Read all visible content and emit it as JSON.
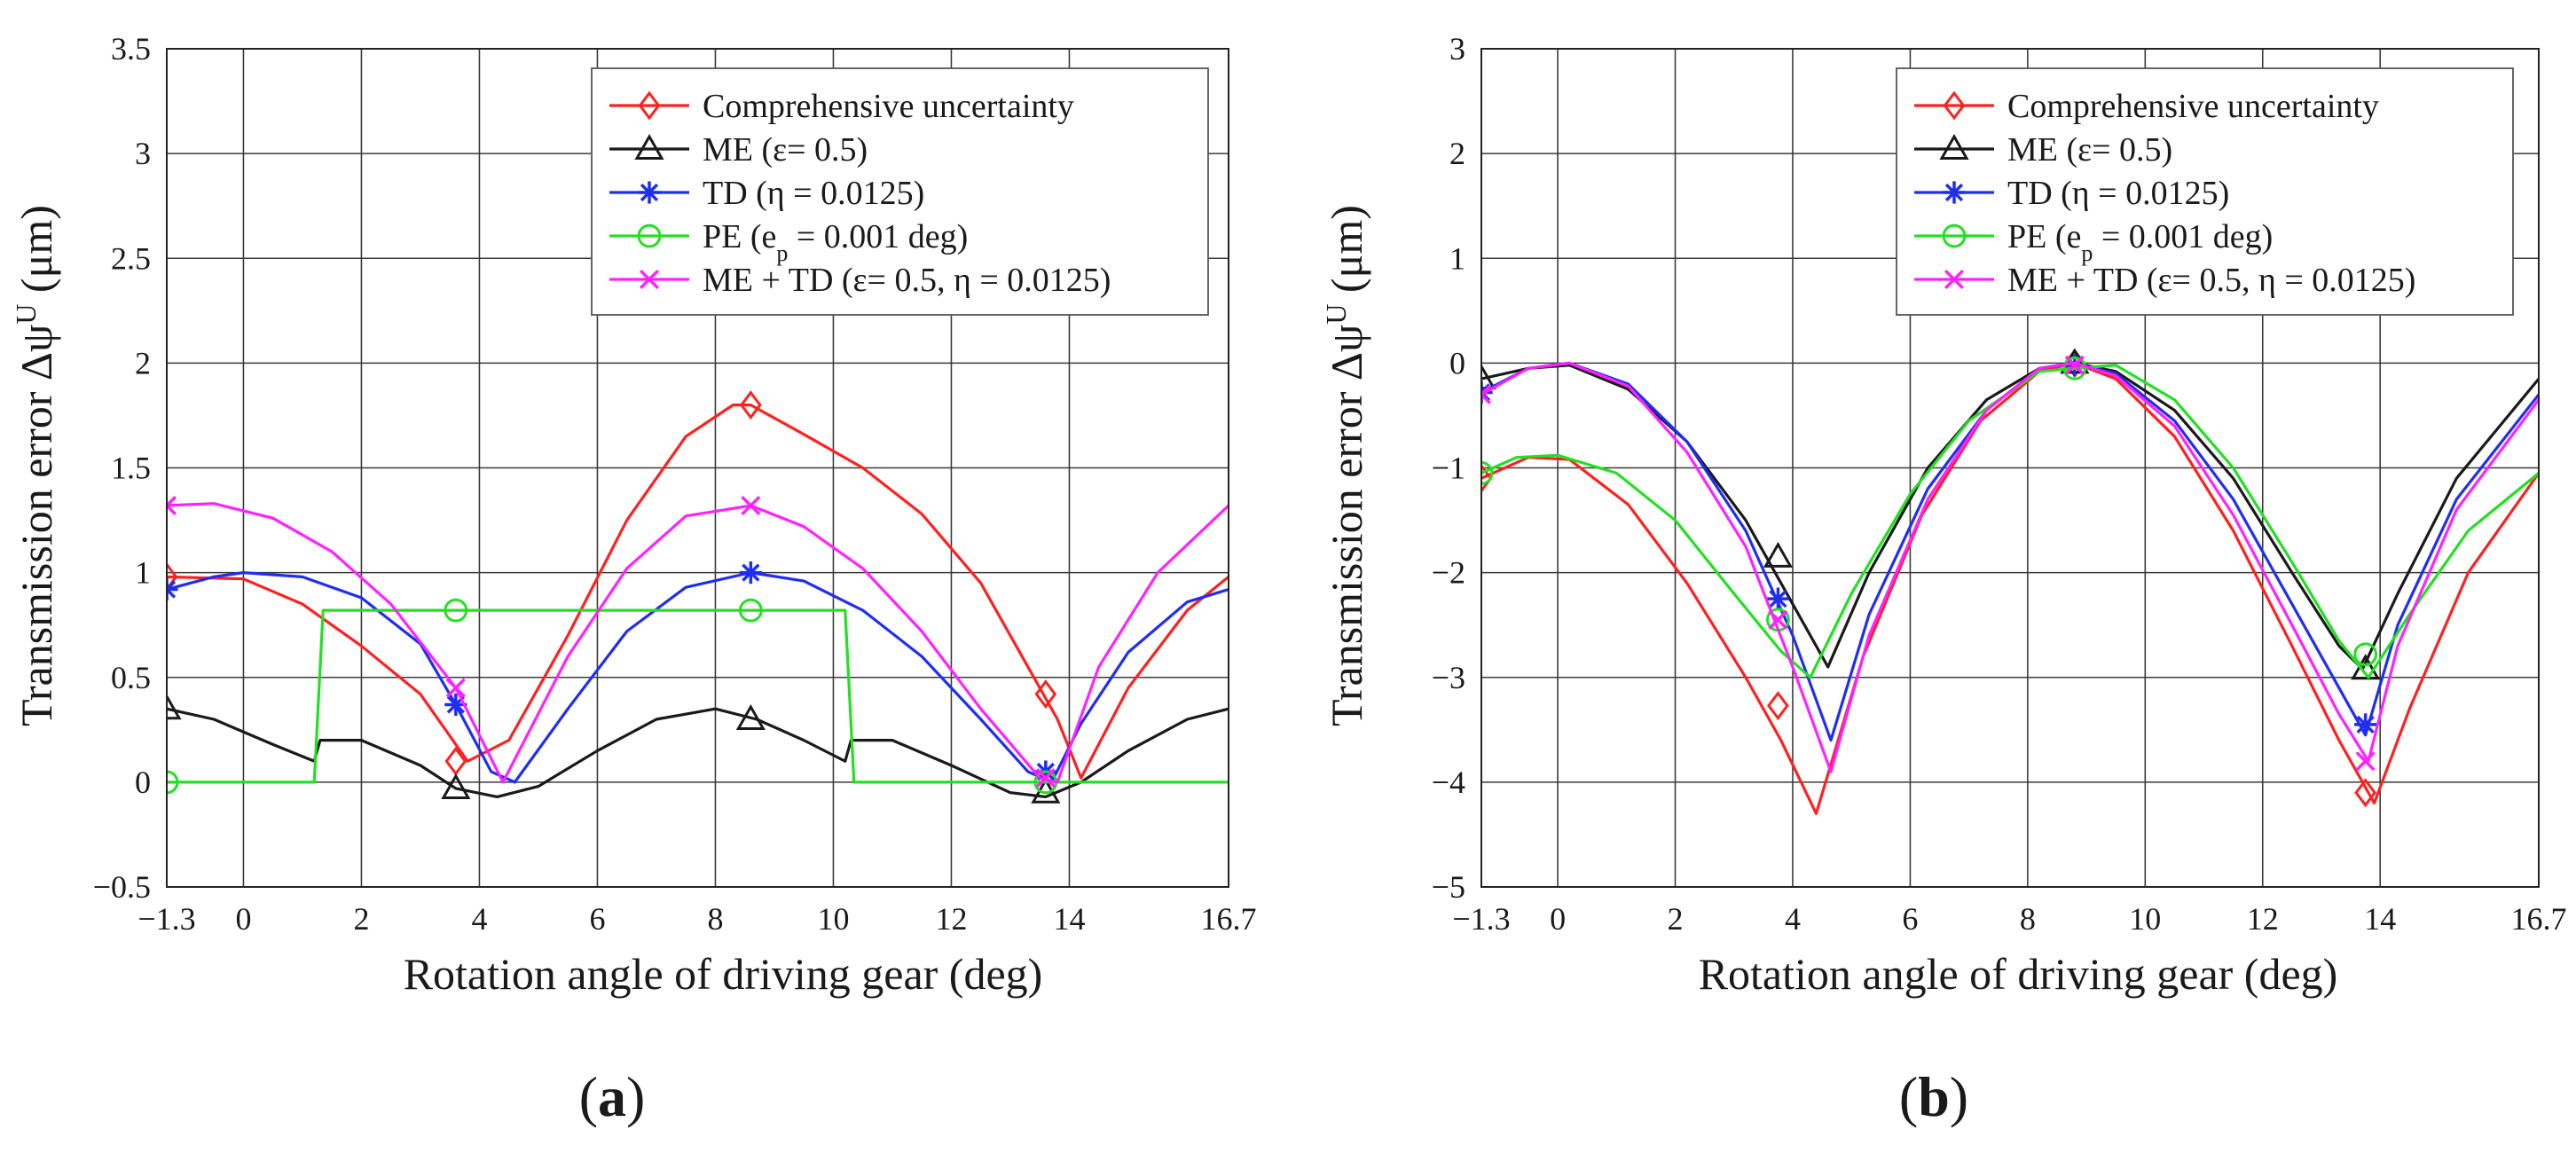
{
  "figure": {
    "panel_labels": [
      {
        "open": "(",
        "letter": "a",
        "close": ")"
      },
      {
        "open": "(",
        "letter": "b",
        "close": ")"
      }
    ]
  },
  "legend": {
    "items": [
      {
        "label": "Comprehensive uncertainty",
        "color": "#ff2020",
        "marker": "diamond"
      },
      {
        "label": "ME (ε= 0.5)",
        "color": "#1a1a1a",
        "marker": "triangle"
      },
      {
        "label": "TD (η = 0.0125)",
        "color": "#1f2ef0",
        "marker": "asterisk"
      },
      {
        "label_main": "PE (e",
        "label_sub": "p",
        "label_tail": " = 0.001 deg)",
        "color": "#22e022",
        "marker": "circle"
      },
      {
        "label": "ME + TD (ε= 0.5, η = 0.0125)",
        "color": "#ff22ff",
        "marker": "cross"
      }
    ]
  },
  "chart_data": [
    {
      "type": "line",
      "panel": "a",
      "title": "",
      "xlabel": "Rotation angle of driving gear (deg)",
      "ylabel_main": "Transmission error Δψ",
      "ylabel_sup": "U",
      "ylabel_unit": " (μm)",
      "xlim": [
        -1.3,
        16.7
      ],
      "ylim": [
        -0.5,
        3.5
      ],
      "xticks": [
        -1.3,
        0,
        2,
        4,
        6,
        8,
        10,
        12,
        14,
        16.7
      ],
      "xtick_labels": [
        "−1.3",
        "0",
        "2",
        "4",
        "6",
        "8",
        "10",
        "12",
        "14",
        "16.7"
      ],
      "yticks": [
        -0.5,
        0,
        0.5,
        1,
        1.5,
        2,
        2.5,
        3,
        3.5
      ],
      "ytick_labels": [
        "−0.5",
        "0",
        "0.5",
        "1",
        "1.5",
        "2",
        "2.5",
        "3",
        "3.5"
      ],
      "grid": true,
      "legend_position": "top-right",
      "series": [
        {
          "name": "Comprehensive uncertainty",
          "color": "#ff2020",
          "marker": "diamond",
          "x": [
            -1.3,
            0,
            1,
            2,
            3,
            3.8,
            4.5,
            5.5,
            6.5,
            7.5,
            8.3,
            8.6,
            9.5,
            10.5,
            11.5,
            12.5,
            13.3,
            13.8,
            14.2,
            15,
            16,
            16.7
          ],
          "y": [
            0.98,
            0.97,
            0.85,
            0.65,
            0.42,
            0.1,
            0.2,
            0.7,
            1.25,
            1.65,
            1.8,
            1.8,
            1.66,
            1.5,
            1.28,
            0.95,
            0.55,
            0.3,
            0.02,
            0.45,
            0.82,
            0.98
          ],
          "markers_x": [
            -1.3,
            3.6,
            8.6,
            13.6
          ],
          "markers_y": [
            0.98,
            0.1,
            1.8,
            0.42
          ]
        },
        {
          "name": "ME (ε= 0.5)",
          "color": "#1a1a1a",
          "marker": "triangle",
          "x": [
            -1.3,
            -0.5,
            0.5,
            1.2,
            1.3,
            2,
            3,
            3.6,
            4.3,
            5,
            6,
            7,
            8,
            8.7,
            9.5,
            10.2,
            10.3,
            11,
            12,
            13,
            13.6,
            14.2,
            15,
            16,
            16.7
          ],
          "y": [
            0.35,
            0.3,
            0.18,
            0.1,
            0.2,
            0.2,
            0.08,
            -0.03,
            -0.07,
            -0.02,
            0.15,
            0.3,
            0.35,
            0.3,
            0.2,
            0.1,
            0.2,
            0.2,
            0.08,
            -0.05,
            -0.07,
            0.0,
            0.15,
            0.3,
            0.35
          ],
          "markers_x": [
            -1.3,
            3.6,
            8.6,
            13.6
          ],
          "markers_y": [
            0.35,
            -0.03,
            0.3,
            -0.05
          ]
        },
        {
          "name": "TD (η = 0.0125)",
          "color": "#1f2ef0",
          "marker": "asterisk",
          "x": [
            -1.3,
            -0.5,
            0,
            1,
            2,
            3,
            3.6,
            4.2,
            4.6,
            5.5,
            6.5,
            7.5,
            8.6,
            9.5,
            10.5,
            11.5,
            12.5,
            13.3,
            13.7,
            14.2,
            15,
            16,
            16.7
          ],
          "y": [
            0.92,
            0.98,
            1.0,
            0.98,
            0.88,
            0.66,
            0.37,
            0.05,
            0.0,
            0.35,
            0.72,
            0.93,
            1.0,
            0.96,
            0.82,
            0.6,
            0.3,
            0.05,
            0.0,
            0.28,
            0.62,
            0.86,
            0.92
          ],
          "markers_x": [
            -1.3,
            3.6,
            8.6,
            13.6
          ],
          "markers_y": [
            0.92,
            0.37,
            1.0,
            0.05
          ]
        },
        {
          "name": "PE (ep = 0.001 deg)",
          "color": "#22e022",
          "marker": "circle",
          "x": [
            -1.3,
            1.2,
            1.35,
            10.2,
            10.35,
            16.7
          ],
          "y": [
            0,
            0,
            0.82,
            0.82,
            0,
            0
          ],
          "markers_x": [
            -1.3,
            3.6,
            8.6,
            13.6
          ],
          "markers_y": [
            0,
            0.82,
            0.82,
            0
          ]
        },
        {
          "name": "ME + TD (ε= 0.5, η = 0.0125)",
          "color": "#ff22ff",
          "marker": "cross",
          "x": [
            -1.3,
            -0.5,
            0.5,
            1.5,
            2.5,
            3.6,
            4.4,
            5.5,
            6.5,
            7.5,
            8.6,
            9.5,
            10.5,
            11.5,
            12.5,
            13.5,
            13.8,
            14.5,
            15.5,
            16.7
          ],
          "y": [
            1.32,
            1.33,
            1.26,
            1.1,
            0.85,
            0.45,
            0.0,
            0.6,
            1.02,
            1.27,
            1.32,
            1.22,
            1.02,
            0.72,
            0.35,
            0.02,
            0.0,
            0.55,
            1.0,
            1.32
          ],
          "markers_x": [
            -1.3,
            3.6,
            8.6,
            13.6
          ],
          "markers_y": [
            1.32,
            0.45,
            1.32,
            0.02
          ]
        }
      ]
    },
    {
      "type": "line",
      "panel": "b",
      "title": "",
      "xlabel": "Rotation angle of driving gear (deg)",
      "ylabel_main": "Transmission error Δψ",
      "ylabel_sup": "U",
      "ylabel_unit": " (μm)",
      "xlim": [
        -1.3,
        16.7
      ],
      "ylim": [
        -5,
        3
      ],
      "xticks": [
        -1.3,
        0,
        2,
        4,
        6,
        8,
        10,
        12,
        14,
        16.7
      ],
      "xtick_labels": [
        "−1.3",
        "0",
        "2",
        "4",
        "6",
        "8",
        "10",
        "12",
        "14",
        "16.7"
      ],
      "yticks": [
        -5,
        -4,
        -3,
        -2,
        -1,
        0,
        1,
        2,
        3
      ],
      "ytick_labels": [
        "−5",
        "−4",
        "−3",
        "−2",
        "−1",
        "0",
        "1",
        "2",
        "3"
      ],
      "grid": true,
      "legend_position": "top-right",
      "series": [
        {
          "name": "Comprehensive uncertainty",
          "color": "#ff2020",
          "marker": "diamond",
          "x": [
            -1.3,
            -0.5,
            0.2,
            1.2,
            2.2,
            3.2,
            3.8,
            4.4,
            5.2,
            6.2,
            7.2,
            8.2,
            8.8,
            9.5,
            10.5,
            11.5,
            12.5,
            13.3,
            13.9,
            14.5,
            15.5,
            16.7
          ],
          "y": [
            -1.1,
            -0.9,
            -0.92,
            -1.35,
            -2.1,
            -3.0,
            -3.6,
            -4.3,
            -2.8,
            -1.45,
            -0.55,
            -0.08,
            0.0,
            -0.15,
            -0.7,
            -1.6,
            -2.7,
            -3.6,
            -4.2,
            -3.3,
            -2.0,
            -1.05
          ],
          "markers_x": [
            -1.3,
            3.75,
            8.8,
            13.75
          ],
          "markers_y": [
            -1.1,
            -3.27,
            0.0,
            -4.1
          ]
        },
        {
          "name": "ME (ε= 0.5)",
          "color": "#1a1a1a",
          "marker": "triangle",
          "x": [
            -1.3,
            -0.5,
            0.2,
            1.2,
            2.2,
            3.2,
            4.0,
            4.6,
            5.3,
            6.3,
            7.3,
            8.2,
            8.8,
            9.5,
            10.5,
            11.5,
            12.5,
            13.3,
            13.7,
            14.3,
            15.3,
            16.7
          ],
          "y": [
            -0.15,
            -0.05,
            -0.02,
            -0.25,
            -0.75,
            -1.5,
            -2.3,
            -2.9,
            -2.0,
            -1.0,
            -0.35,
            -0.05,
            0.0,
            -0.08,
            -0.45,
            -1.1,
            -2.0,
            -2.7,
            -2.92,
            -2.2,
            -1.1,
            -0.15
          ],
          "markers_x": [
            -1.3,
            3.75,
            8.8,
            13.75
          ],
          "markers_y": [
            -0.15,
            -1.85,
            0.0,
            -2.92
          ]
        },
        {
          "name": "TD (η = 0.0125)",
          "color": "#1f2ef0",
          "marker": "asterisk",
          "x": [
            -1.3,
            -0.5,
            0.2,
            1.2,
            2.2,
            3.2,
            4.0,
            4.65,
            5.3,
            6.3,
            7.3,
            8.2,
            8.8,
            9.5,
            10.5,
            11.5,
            12.5,
            13.3,
            13.75,
            14.3,
            15.3,
            16.7
          ],
          "y": [
            -0.28,
            -0.05,
            0.0,
            -0.2,
            -0.75,
            -1.6,
            -2.6,
            -3.6,
            -2.4,
            -1.2,
            -0.45,
            -0.05,
            0.0,
            -0.1,
            -0.55,
            -1.3,
            -2.3,
            -3.1,
            -3.55,
            -2.5,
            -1.3,
            -0.3
          ],
          "markers_x": [
            -1.3,
            3.75,
            8.8,
            13.75
          ],
          "markers_y": [
            -0.28,
            -2.25,
            -0.02,
            -3.45
          ]
        },
        {
          "name": "PE (ep = 0.001 deg)",
          "color": "#22e022",
          "marker": "circle",
          "x": [
            -1.3,
            -0.7,
            0.0,
            1.0,
            2.0,
            3.0,
            3.8,
            4.3,
            5.0,
            6.0,
            7.0,
            8.2,
            8.8,
            9.5,
            10.5,
            11.5,
            12.5,
            13.3,
            13.8,
            14.5,
            15.5,
            16.7
          ],
          "y": [
            -1.05,
            -0.9,
            -0.88,
            -1.05,
            -1.5,
            -2.2,
            -2.75,
            -3.0,
            -2.2,
            -1.25,
            -0.55,
            -0.08,
            -0.05,
            -0.02,
            -0.35,
            -1.0,
            -1.9,
            -2.65,
            -3.0,
            -2.4,
            -1.6,
            -1.05
          ],
          "markers_x": [
            -1.3,
            3.75,
            8.8,
            13.75
          ],
          "markers_y": [
            -1.05,
            -2.45,
            -0.05,
            -2.78
          ]
        },
        {
          "name": "ME + TD (ε= 0.5, η = 0.0125)",
          "color": "#ff22ff",
          "marker": "cross",
          "x": [
            -1.3,
            -0.5,
            0.2,
            1.2,
            2.2,
            3.2,
            4.0,
            4.65,
            5.3,
            6.3,
            7.3,
            8.2,
            8.8,
            9.5,
            10.5,
            11.5,
            12.5,
            13.3,
            13.8,
            14.3,
            15.3,
            16.7
          ],
          "y": [
            -0.3,
            -0.05,
            0.0,
            -0.22,
            -0.85,
            -1.75,
            -2.9,
            -3.9,
            -2.6,
            -1.3,
            -0.45,
            -0.05,
            0.0,
            -0.12,
            -0.6,
            -1.45,
            -2.5,
            -3.35,
            -3.8,
            -2.7,
            -1.4,
            -0.35
          ],
          "markers_x": [
            -1.3,
            3.75,
            8.8,
            13.75
          ],
          "markers_y": [
            -0.3,
            -2.45,
            -0.02,
            -3.8
          ]
        }
      ]
    }
  ]
}
